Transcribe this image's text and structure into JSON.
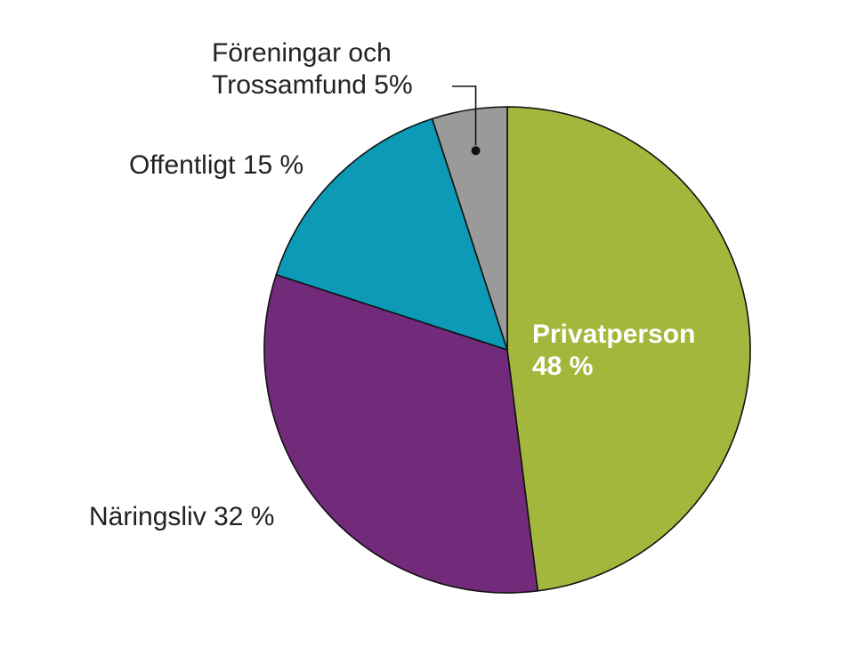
{
  "chart_data": {
    "type": "pie",
    "slices": [
      {
        "label": "Privatperson",
        "percent_text": "48 %",
        "value": 48,
        "color": "#a4b73d"
      },
      {
        "label": "Näringsliv",
        "percent_text": "32 %",
        "value": 32,
        "color": "#722a7a"
      },
      {
        "label": "Offentligt",
        "percent_text": "15 %",
        "value": 15,
        "color": "#0c9ab6"
      },
      {
        "label": "Föreningar och Trossamfund",
        "percent_text": "5%",
        "value": 5,
        "color": "#9a9a9a"
      }
    ],
    "labels": {
      "privat_line1": "Privatperson",
      "privat_line2": "48 %",
      "naringsliv": "Näringsliv 32 %",
      "offentligt": "Offentligt 15 %",
      "foreningar_line1": "Föreningar och",
      "foreningar_line2": "Trossamfund 5%"
    },
    "start": "12 o'clock",
    "direction": "clockwise",
    "outline_color": "#111111"
  }
}
